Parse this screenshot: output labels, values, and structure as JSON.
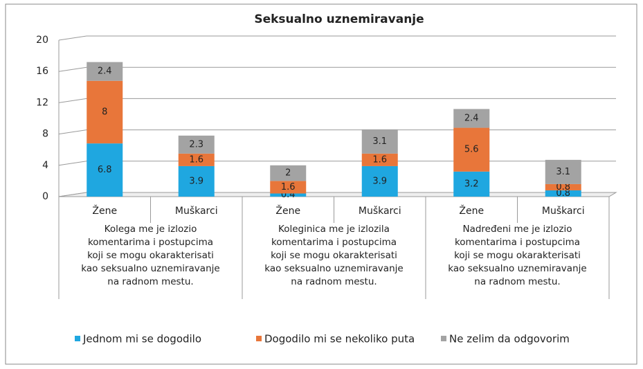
{
  "chart_data": {
    "type": "stacked_bar",
    "title": "Seksualno uznemiravanje",
    "categories": [
      "Žene",
      "Muškarci",
      "Žene",
      "Muškarci",
      "Žene",
      "Muškarci"
    ],
    "category_groups": [
      "Kolega me je izlozio komentarima i postupcima koji se mogu okarakterisati kao seksualno uznemiravanje na radnom mestu.",
      "Koleginica me je izlozila komentarima i postupcima koji se mogu okarakterisati kao seksualno uznemiravanje na radnom mestu.",
      "Nadređeni me je izlozio komentarima i postupcima koji se mogu okarakterisati kao seksualno uznemiravanje na radnom mestu."
    ],
    "series": [
      {
        "name": "Jednom mi se dogodilo",
        "color": "#1fa7e0",
        "values": [
          6.8,
          3.9,
          0.4,
          3.9,
          3.2,
          0.8
        ]
      },
      {
        "name": "Dogodilo mi se nekoliko puta",
        "color": "#e8763a",
        "values": [
          8,
          1.6,
          1.6,
          1.6,
          5.6,
          0.8
        ]
      },
      {
        "name": "Ne zelim da odgovorim",
        "color": "#a3a3a3",
        "values": [
          2.4,
          2.3,
          2,
          3.1,
          2.4,
          3.1
        ]
      }
    ],
    "ylim": [
      0,
      20
    ],
    "yticks": [
      0,
      4,
      8,
      12,
      16,
      20
    ],
    "grid": true,
    "legend": "bottom"
  }
}
